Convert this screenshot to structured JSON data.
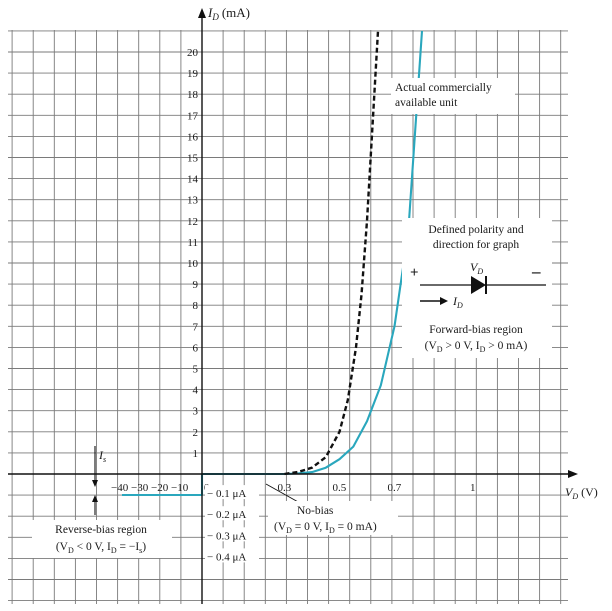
{
  "chart_data": {
    "type": "line",
    "ylabel": {
      "symbol": "I",
      "sub": "D",
      "unit": "(mA)"
    },
    "xlabel": {
      "symbol": "V",
      "sub": "D",
      "unit": "(V)"
    },
    "y_ticks": [
      "1",
      "2",
      "3",
      "4",
      "5",
      "6",
      "7",
      "8",
      "9",
      "10",
      "11",
      "12",
      "13",
      "14",
      "15",
      "16",
      "17",
      "18",
      "19",
      "20"
    ],
    "x_ticks_reverse": [
      "−40",
      "−30",
      "−20",
      "−10"
    ],
    "x_ticks_forward": [
      "0",
      "0.3",
      "0.5",
      "0.7",
      "1"
    ],
    "reverse_current_ticks": [
      "− 0.1 μA",
      "− 0.2 μA",
      "− 0.3 μA",
      "− 0.4 μA"
    ],
    "grid": true,
    "series": [
      {
        "style": "solid",
        "color": "#2aa7bd",
        "reverse_region": {
          "x": [
            -40,
            -30,
            -20,
            -10,
            0
          ],
          "y": [
            -0.1,
            -0.1,
            -0.1,
            -0.1,
            -0.1
          ]
        },
        "forward_region": {
          "x": [
            0,
            0.1,
            0.2,
            0.3,
            0.35,
            0.4,
            0.45,
            0.5,
            0.55,
            0.6,
            0.65,
            0.7,
            0.75,
            0.8
          ],
          "y": [
            0,
            0,
            0,
            0,
            0.03,
            0.09,
            0.3,
            0.7,
            1.3,
            2.5,
            4.2,
            7.0,
            11.5,
            21
          ]
        }
      },
      {
        "name": "Actual commercially available unit",
        "style": "dashed",
        "color": "#111111",
        "x": [
          0.3,
          0.35,
          0.4,
          0.45,
          0.5,
          0.53,
          0.56,
          0.58,
          0.6,
          0.62,
          0.64
        ],
        "y": [
          0,
          0.1,
          0.3,
          0.8,
          2.0,
          3.5,
          6.0,
          8.5,
          12,
          16.5,
          21
        ]
      }
    ],
    "annotations": {
      "actual_unit": [
        "Actual commercially",
        "available unit"
      ],
      "polarity": [
        "Defined polarity and",
        "direction for graph"
      ],
      "plus": "+",
      "minus": "–",
      "vd_symbol": {
        "symbol": "V",
        "sub": "D"
      },
      "id_symbol": {
        "symbol": "I",
        "sub": "D"
      },
      "is_symbol": {
        "symbol": "I",
        "sub": "s"
      },
      "forward_bias": [
        "Forward-bias region",
        "(V",
        "D",
        " > 0 V,  I",
        "D",
        " > 0  mA)"
      ],
      "no_bias": [
        "No-bias",
        "(V",
        "D",
        " = 0 V, I",
        "D",
        " = 0 mA)"
      ],
      "reverse_bias": [
        "Reverse-bias region",
        "(V",
        "D",
        " < 0 V, I",
        "D",
        " = −I",
        "s",
        ")"
      ]
    }
  }
}
